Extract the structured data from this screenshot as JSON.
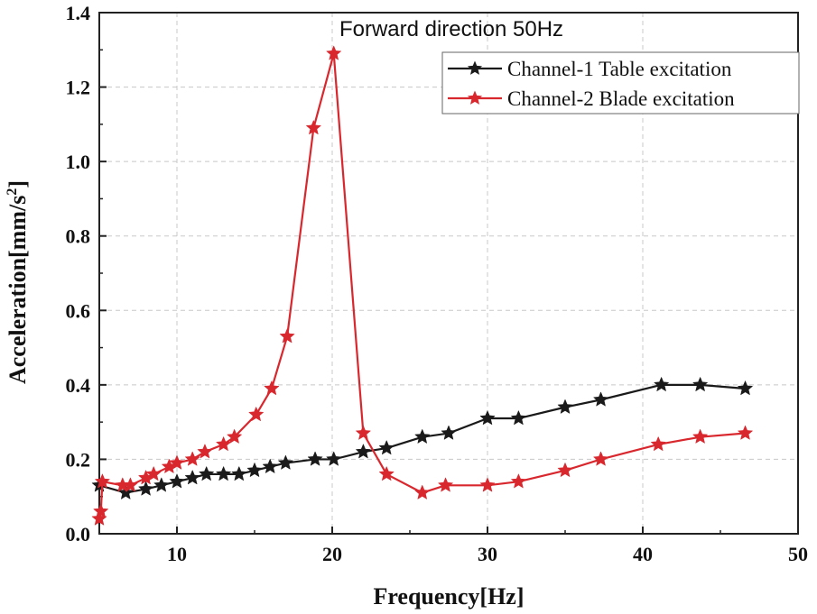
{
  "chart_data": {
    "type": "line",
    "title": "Forward direction 50Hz",
    "xlabel": "Frequency[Hz]",
    "ylabel": "Acceleration[mm/s",
    "ylabel_superscript": "2",
    "ylabel_suffix": "]",
    "xlim": [
      5,
      50
    ],
    "ylim": [
      0,
      1.4
    ],
    "xticks": [
      10,
      20,
      30,
      40,
      50
    ],
    "yticks": [
      0.0,
      0.2,
      0.4,
      0.6,
      0.8,
      1.0,
      1.2,
      1.4
    ],
    "ytick_labels": [
      "0.0",
      "0.2",
      "0.4",
      "0.6",
      "0.8",
      "1.0",
      "1.2",
      "1.4"
    ],
    "legend_position": "top-right",
    "series": [
      {
        "name": "Channel-1 Table excitation",
        "color": "#1a1a1a",
        "x": [
          5.0,
          6.7,
          8.0,
          9.0,
          10.0,
          11.0,
          11.9,
          13.0,
          14.0,
          15.0,
          16.0,
          17.0,
          18.9,
          20.1,
          22.0,
          23.5,
          25.8,
          27.5,
          30.0,
          32.0,
          35.0,
          37.3,
          41.2,
          43.7,
          46.6
        ],
        "y": [
          0.13,
          0.11,
          0.12,
          0.13,
          0.14,
          0.15,
          0.16,
          0.16,
          0.16,
          0.17,
          0.18,
          0.19,
          0.2,
          0.2,
          0.22,
          0.23,
          0.26,
          0.27,
          0.31,
          0.31,
          0.34,
          0.36,
          0.4,
          0.4,
          0.39
        ]
      },
      {
        "name": "Channel-2 Blade excitation",
        "color": "#d9272e",
        "x": [
          5.0,
          5.1,
          5.2,
          6.5,
          7.0,
          8.0,
          8.5,
          9.5,
          10.0,
          11.0,
          11.8,
          13.0,
          13.7,
          15.1,
          16.1,
          17.1,
          18.8,
          20.1,
          22.0,
          23.5,
          25.8,
          27.3,
          30.0,
          32.0,
          35.0,
          37.3,
          41.0,
          43.7,
          46.6
        ],
        "y": [
          0.04,
          0.06,
          0.14,
          0.13,
          0.13,
          0.15,
          0.16,
          0.18,
          0.19,
          0.2,
          0.22,
          0.24,
          0.26,
          0.32,
          0.39,
          0.53,
          1.09,
          1.29,
          0.27,
          0.16,
          0.11,
          0.13,
          0.13,
          0.14,
          0.17,
          0.2,
          0.24,
          0.26,
          0.27
        ]
      }
    ]
  }
}
